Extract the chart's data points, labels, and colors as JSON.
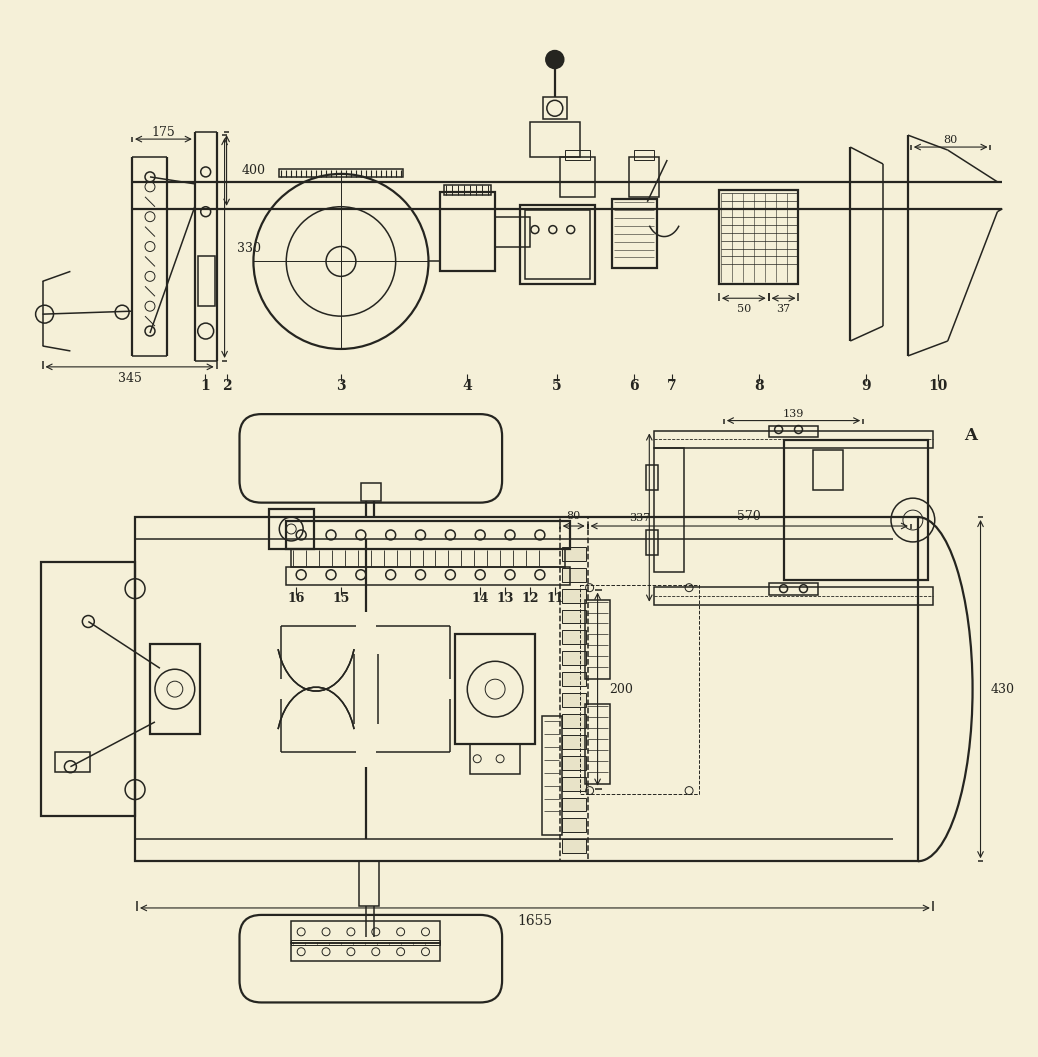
{
  "bg_color": "#f5f0d8",
  "line_color": "#252520",
  "figsize": [
    10.38,
    10.57
  ],
  "dpi": 100
}
